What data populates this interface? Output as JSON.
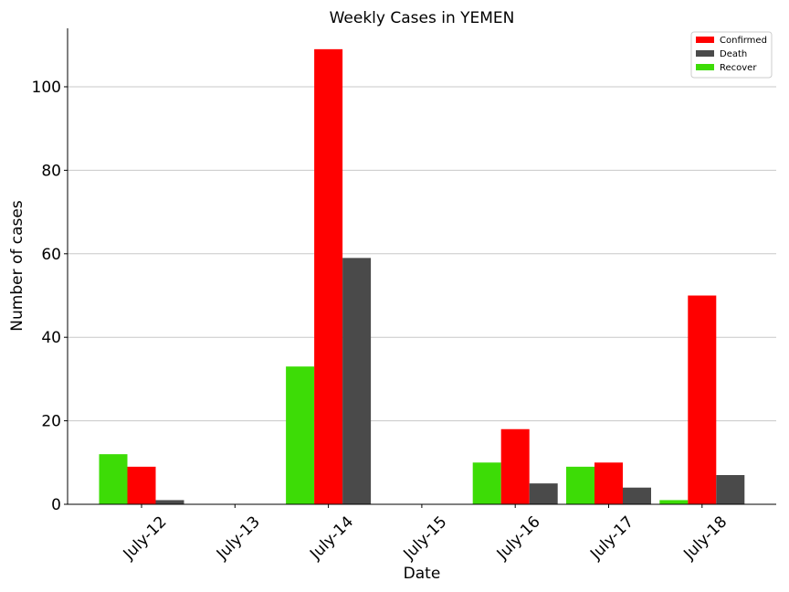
{
  "chart_data": {
    "type": "bar",
    "title": "Weekly Cases in YEMEN",
    "xlabel": "Date",
    "ylabel": "Number of cases",
    "categories": [
      "July-12",
      "July-13",
      "July-14",
      "July-15",
      "July-16",
      "July-17",
      "July-18"
    ],
    "series": [
      {
        "name": "Recover",
        "color": "#3ddc06",
        "values": [
          12,
          0,
          33,
          0,
          10,
          9,
          1
        ]
      },
      {
        "name": "Confirmed",
        "color": "#ff0000",
        "values": [
          9,
          0,
          109,
          0,
          18,
          10,
          50
        ]
      },
      {
        "name": "Death",
        "color": "#4a4a4a",
        "values": [
          1,
          0,
          59,
          0,
          5,
          4,
          7
        ]
      }
    ],
    "legend_order": [
      "Confirmed",
      "Death",
      "Recover"
    ],
    "ylim": [
      0,
      114
    ],
    "yticks": [
      0,
      20,
      40,
      60,
      80,
      100
    ],
    "grid": "horizontal",
    "legend_position": "top-right"
  }
}
